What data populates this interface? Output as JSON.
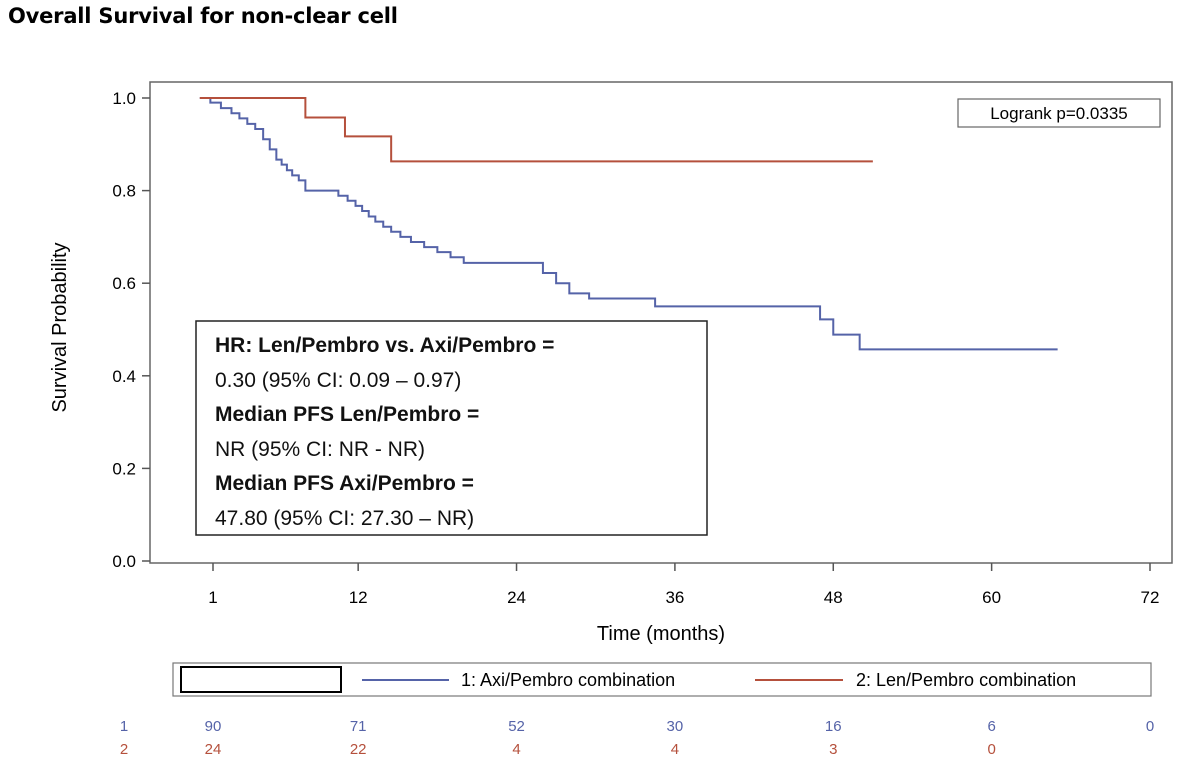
{
  "title": "Overall Survival for non-clear cell",
  "colors": {
    "axi": "#5563a8",
    "len": "#b5503c",
    "axis": "#555555",
    "frame": "#666666"
  },
  "chart_data": {
    "type": "line",
    "step": true,
    "xlabel": "Time (months)",
    "ylabel": "Survival Probability",
    "xlim": [
      -4,
      72
    ],
    "ylim": [
      0,
      1.0
    ],
    "xticks": [
      1,
      12,
      24,
      36,
      48,
      60,
      72
    ],
    "xtick_labels": [
      "1",
      "12",
      "24",
      "36",
      "48",
      "60",
      "72"
    ],
    "yticks": [
      0.0,
      0.2,
      0.4,
      0.6,
      0.8,
      1.0
    ],
    "ytick_labels": [
      "0.0",
      "0.2",
      "0.4",
      "0.6",
      "0.8",
      "1.0"
    ],
    "grid": false,
    "logrank": "Logrank p=0.0335",
    "stats_box": [
      {
        "text": "HR: Len/Pembro vs. Axi/Pembro =",
        "bold": true
      },
      {
        "text": "0.30 (95% CI: 0.09 – 0.97)",
        "bold": false
      },
      {
        "text": "Median PFS Len/Pembro =",
        "bold": true
      },
      {
        "text": "NR (95% CI: NR - NR)",
        "bold": false
      },
      {
        "text": "Median PFS Axi/Pembro =",
        "bold": true
      },
      {
        "text": "47.80 (95% CI: 27.30 – NR)",
        "bold": false
      }
    ],
    "legend_position": "bottom",
    "series": [
      {
        "name": "1: Axi/Pembro combination",
        "color": "#5563a8",
        "x": [
          0,
          0.8,
          1.6,
          2.4,
          3.0,
          3.6,
          4.2,
          4.8,
          5.3,
          5.8,
          6.2,
          6.6,
          7.0,
          7.5,
          8.0,
          9.0,
          10.5,
          11.2,
          11.8,
          12.3,
          12.8,
          13.3,
          13.9,
          14.5,
          15.2,
          16.0,
          17.0,
          18.0,
          19.0,
          20.0,
          21.0,
          22.0,
          26.0,
          27.0,
          28.0,
          29.5,
          34.5,
          47.0,
          48.0,
          50.0,
          65.0
        ],
        "y": [
          1.0,
          0.99,
          0.978,
          0.967,
          0.956,
          0.944,
          0.933,
          0.911,
          0.889,
          0.867,
          0.856,
          0.844,
          0.833,
          0.822,
          0.8,
          0.8,
          0.789,
          0.778,
          0.767,
          0.756,
          0.744,
          0.733,
          0.722,
          0.711,
          0.7,
          0.689,
          0.678,
          0.667,
          0.656,
          0.644,
          0.644,
          0.644,
          0.622,
          0.6,
          0.578,
          0.567,
          0.55,
          0.522,
          0.489,
          0.457,
          0.457
        ]
      },
      {
        "name": "2: Len/Pembro combination",
        "color": "#b5503c",
        "x": [
          0,
          8.0,
          11.0,
          14.5,
          51.0
        ],
        "y": [
          1.0,
          0.958,
          0.917,
          0.863,
          0.863
        ]
      }
    ],
    "risk_table": {
      "times": [
        1,
        12,
        24,
        36,
        48,
        60,
        72
      ],
      "rows": [
        {
          "label": "1",
          "color": "#5563a8",
          "values": [
            "90",
            "71",
            "52",
            "30",
            "16",
            "6",
            "0"
          ]
        },
        {
          "label": "2",
          "color": "#b5503c",
          "values": [
            "24",
            "22",
            "4",
            "4",
            "3",
            "0",
            ""
          ]
        }
      ]
    }
  }
}
